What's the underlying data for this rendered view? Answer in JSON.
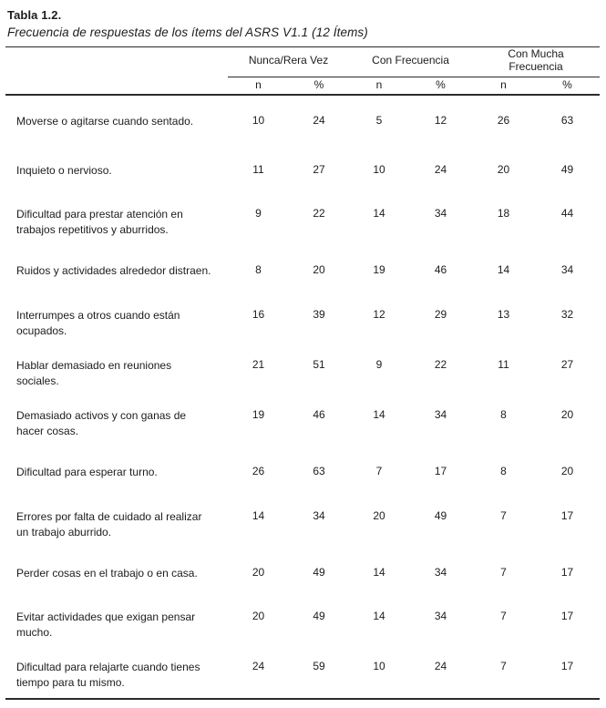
{
  "table": {
    "title": "Tabla 1.2.",
    "subtitle": "Frecuencia de respuestas de los ítems del ASRS V1.1 (12 Ítems)",
    "column_groups": [
      "Nunca/Rera Vez",
      "Con Frecuencia",
      "Con Mucha Frecuencia"
    ],
    "sub_headers": [
      "n",
      "%",
      "n",
      "%",
      "n",
      "%"
    ],
    "rows": [
      {
        "item": "Moverse o agitarse cuando sentado.",
        "values": [
          10,
          24,
          5,
          12,
          26,
          63
        ]
      },
      {
        "item": "Inquieto o nervioso.",
        "values": [
          11,
          27,
          10,
          24,
          20,
          49
        ]
      },
      {
        "item": "Dificultad para prestar atención en\ntrabajos repetitivos y aburridos.",
        "values": [
          9,
          22,
          14,
          34,
          18,
          44
        ]
      },
      {
        "item": "Ruidos y actividades alrededor distraen.",
        "values": [
          8,
          20,
          19,
          46,
          14,
          34
        ]
      },
      {
        "item": "Interrumpes a otros cuando están\nocupados.",
        "values": [
          16,
          39,
          12,
          29,
          13,
          32
        ]
      },
      {
        "item": "Hablar demasiado en reuniones\nsociales.",
        "values": [
          21,
          51,
          9,
          22,
          11,
          27
        ]
      },
      {
        "item": "Demasiado activos y con ganas de\nhacer cosas.",
        "values": [
          19,
          46,
          14,
          34,
          8,
          20
        ]
      },
      {
        "item": "Dificultad para esperar turno.",
        "values": [
          26,
          63,
          7,
          17,
          8,
          20
        ]
      },
      {
        "item": "Errores por falta de cuidado al realizar\nun trabajo aburrido.",
        "values": [
          14,
          34,
          20,
          49,
          7,
          17
        ]
      },
      {
        "item": "Perder cosas en el trabajo o en casa.",
        "values": [
          20,
          49,
          14,
          34,
          7,
          17
        ]
      },
      {
        "item": "Evitar actividades que exigan pensar\nmucho.",
        "values": [
          20,
          49,
          14,
          34,
          7,
          17
        ]
      },
      {
        "item": "Dificultad para relajarte cuando tienes\ntiempo para tu mismo.",
        "values": [
          24,
          59,
          10,
          24,
          7,
          17
        ]
      }
    ]
  }
}
